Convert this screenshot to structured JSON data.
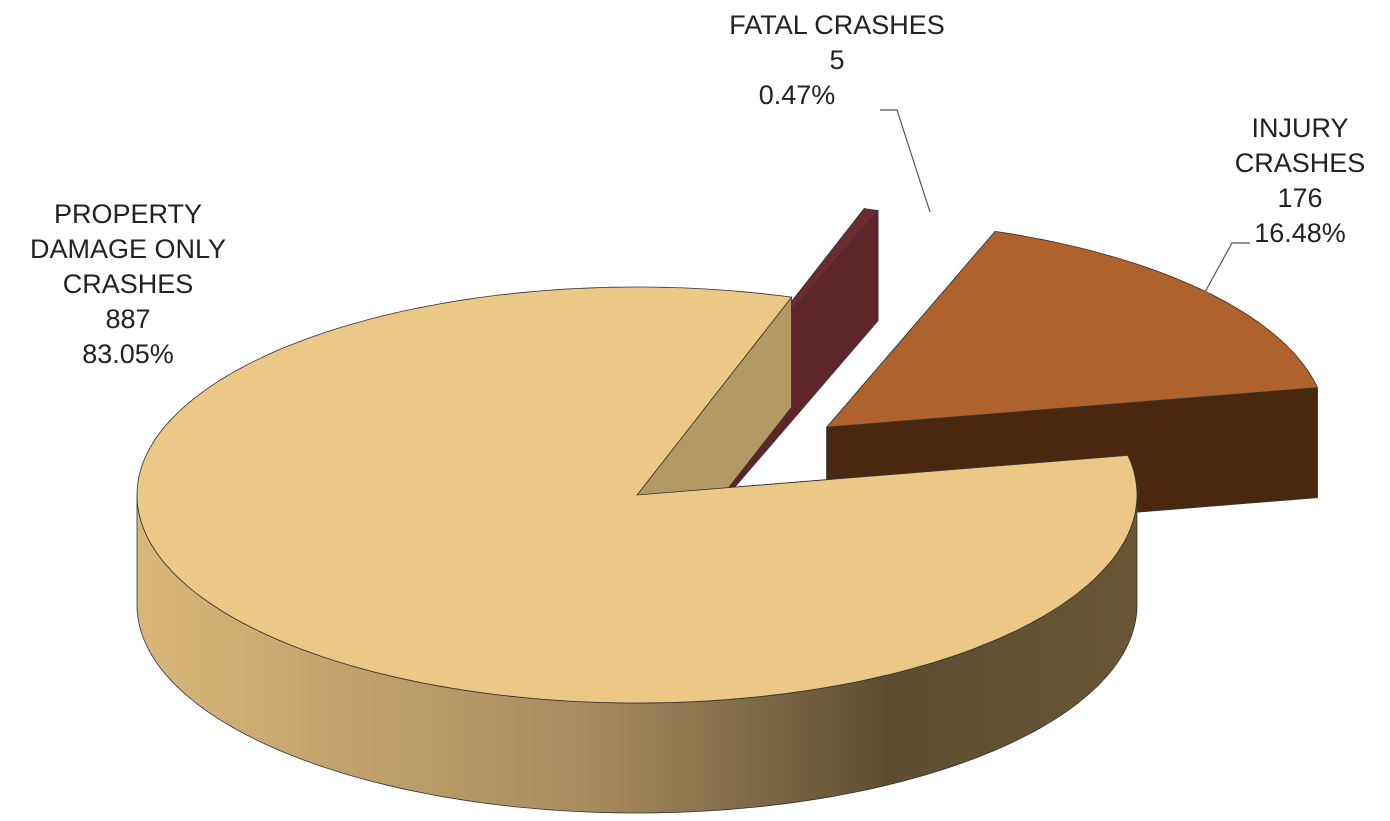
{
  "chart_data": {
    "type": "pie",
    "categories": [
      "FATAL CRASHES",
      "INJURY CRASHES",
      "PROPERTY DAMAGE ONLY CRASHES"
    ],
    "values": [
      5,
      176,
      887
    ],
    "percentages": [
      0.47,
      16.48,
      83.05
    ],
    "percentage_labels": [
      "0.47%",
      "16.48%",
      "83.05%"
    ],
    "colors": [
      "#6E2A31",
      "#B0622D",
      "#ECC887"
    ]
  }
}
